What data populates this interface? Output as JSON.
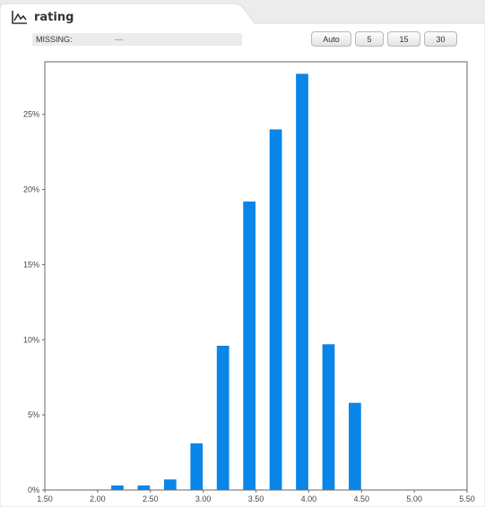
{
  "header": {
    "title": "rating",
    "icon": "line-chart-icon"
  },
  "missing": {
    "label": "MISSING:",
    "value": "---"
  },
  "buttons": [
    {
      "label": "Auto"
    },
    {
      "label": "5"
    },
    {
      "label": "15"
    },
    {
      "label": "30"
    }
  ],
  "colors": {
    "bar": "#0a85e8",
    "missing_value": "#1f7bd6",
    "panel": "#ffffff",
    "background": "#ececec"
  },
  "chart_data": {
    "type": "bar",
    "xlim": [
      1.5,
      5.5
    ],
    "ylim": [
      0,
      28.5
    ],
    "x_ticks": [
      "1.50",
      "2.00",
      "2.50",
      "3.00",
      "3.50",
      "4.00",
      "4.50",
      "5.00",
      "5.50"
    ],
    "x_tick_values": [
      1.5,
      2.0,
      2.5,
      3.0,
      3.5,
      4.0,
      4.5,
      5.0,
      5.5
    ],
    "y_ticks": [
      "0%",
      "5%",
      "10%",
      "15%",
      "20%",
      "25%"
    ],
    "y_tick_values": [
      0,
      5,
      10,
      15,
      20,
      25
    ],
    "bin_width": 0.125,
    "bins": [
      {
        "start": 2.125,
        "end": 2.25,
        "value": 0.3
      },
      {
        "start": 2.25,
        "end": 2.375,
        "value": 0
      },
      {
        "start": 2.375,
        "end": 2.5,
        "value": 0.3
      },
      {
        "start": 2.5,
        "end": 2.625,
        "value": 0
      },
      {
        "start": 2.625,
        "end": 2.75,
        "value": 0.7
      },
      {
        "start": 2.875,
        "end": 3.0,
        "value": 3.1
      },
      {
        "start": 3.125,
        "end": 3.25,
        "value": 9.6
      },
      {
        "start": 3.25,
        "end": 3.375,
        "value": 0
      },
      {
        "start": 3.375,
        "end": 3.5,
        "value": 19.2
      },
      {
        "start": 3.625,
        "end": 3.75,
        "value": 24.0
      },
      {
        "start": 3.875,
        "end": 4.0,
        "value": 27.7
      },
      {
        "start": 4.125,
        "end": 4.25,
        "value": 9.7
      },
      {
        "start": 4.375,
        "end": 4.5,
        "value": 5.8
      }
    ],
    "grid": false,
    "legend": "none"
  }
}
